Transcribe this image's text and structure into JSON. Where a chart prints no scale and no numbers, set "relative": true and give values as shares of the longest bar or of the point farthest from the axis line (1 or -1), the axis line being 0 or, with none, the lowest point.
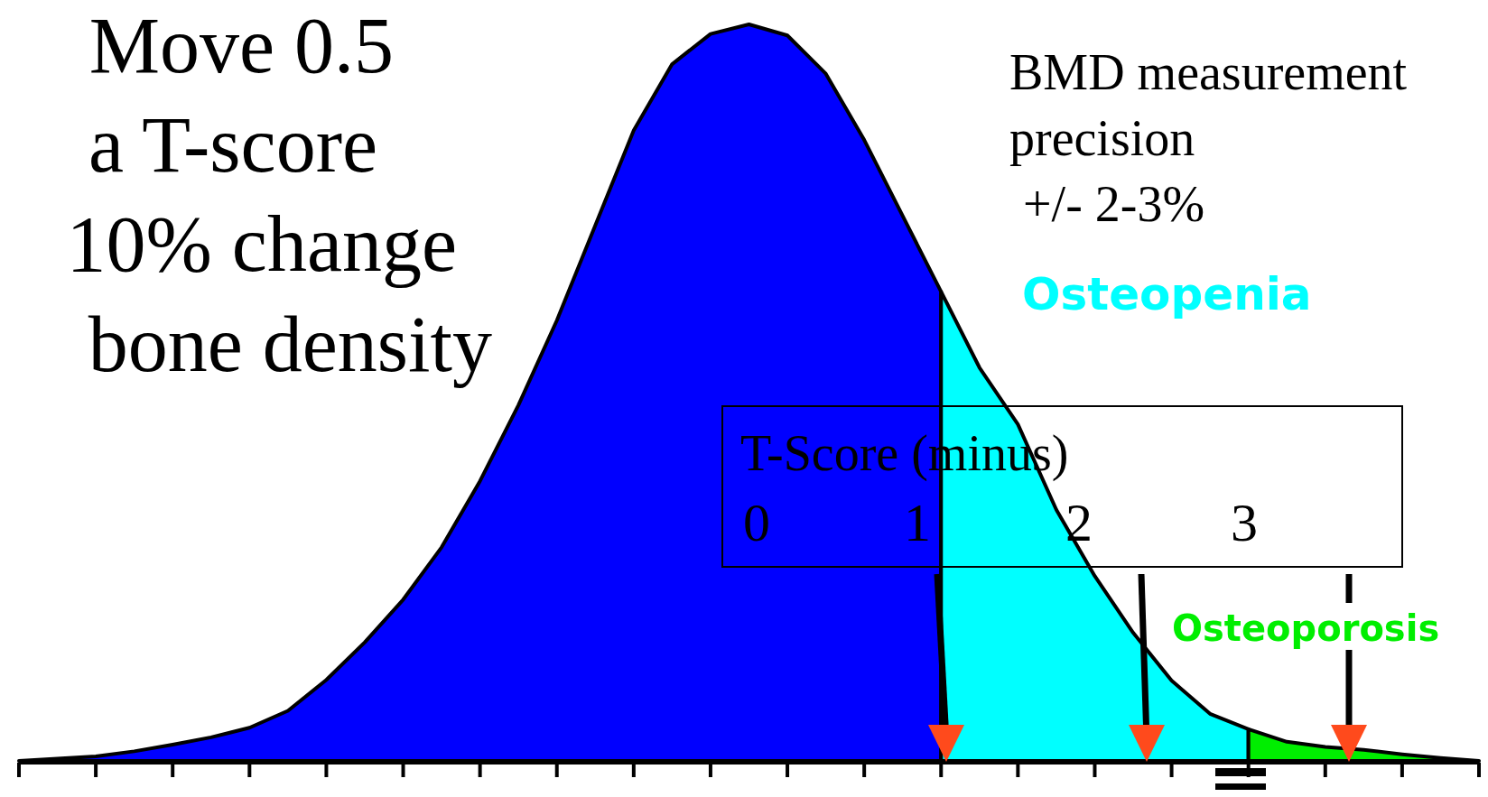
{
  "chart_data": {
    "type": "area",
    "relative": true,
    "categories": [
      null,
      null,
      null,
      null,
      null,
      null,
      null,
      null,
      null,
      null,
      null,
      null,
      null,
      null,
      null,
      null,
      null,
      null,
      null,
      null,
      null,
      null,
      null,
      null,
      null,
      null,
      null,
      null,
      null,
      null,
      null,
      null,
      null,
      null,
      null,
      null,
      null,
      null,
      null
    ],
    "series": [
      {
        "color": "#0000ff",
        "values": [
          0,
          0.003,
          0.006,
          0.013,
          0.022,
          0.032,
          0.045,
          0.068,
          0.11,
          0.161,
          0.219,
          0.29,
          0.38,
          0.483,
          0.598,
          0.727,
          0.856,
          0.946,
          0.987,
          1,
          0.985,
          0.933,
          0.843,
          0.74,
          0.637,
          null,
          null,
          null,
          null,
          null,
          null,
          null,
          null,
          null,
          null,
          null,
          null,
          null,
          null
        ]
      },
      {
        "name": "Osteopenia",
        "color": "#00ffff",
        "values": [
          null,
          null,
          null,
          null,
          null,
          null,
          null,
          null,
          null,
          null,
          null,
          null,
          null,
          null,
          null,
          null,
          null,
          null,
          null,
          null,
          null,
          null,
          null,
          null,
          0.637,
          0.534,
          0.457,
          0.341,
          0.251,
          0.174,
          0.109,
          0.064,
          0.043,
          null,
          null,
          null,
          null,
          null,
          null
        ]
      },
      {
        "name": "Osteoporosis",
        "color": "#00ee00",
        "values": [
          null,
          null,
          null,
          null,
          null,
          null,
          null,
          null,
          null,
          null,
          null,
          null,
          null,
          null,
          null,
          null,
          null,
          null,
          null,
          null,
          null,
          null,
          null,
          null,
          null,
          null,
          null,
          null,
          null,
          null,
          null,
          null,
          0.043,
          0.026,
          0.019,
          0.015,
          0.009,
          0.004,
          0
        ]
      }
    ],
    "annotations": [
      "Move 0.5",
      "a T-score",
      "10% change",
      "bone density",
      "BMD measurement",
      "precision",
      "+/- 2-3%",
      "T-Score (minus)",
      "0",
      "1",
      "2",
      "3"
    ]
  }
}
